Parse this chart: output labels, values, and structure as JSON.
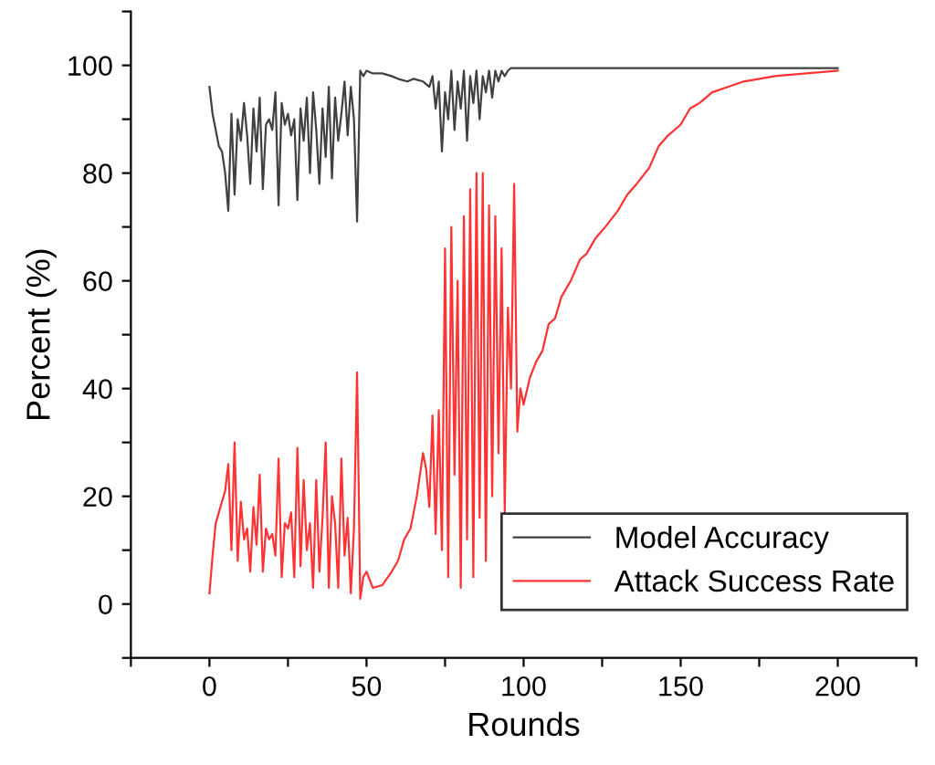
{
  "chart_data": {
    "type": "line",
    "xlabel": "Rounds",
    "ylabel": "Percent (%)",
    "xlim": [
      -25,
      225
    ],
    "xticks": [
      {
        "value": -25,
        "label": null
      },
      0,
      {
        "value": 25,
        "label": null
      },
      50,
      {
        "value": 75,
        "label": null
      },
      100,
      {
        "value": 125,
        "label": null
      },
      150,
      {
        "value": 175,
        "label": null
      },
      200,
      {
        "value": 225,
        "label": null
      }
    ],
    "ylim": [
      -10,
      110
    ],
    "yticks": [
      {
        "value": -10,
        "label": null
      },
      0,
      {
        "value": 10,
        "label": null
      },
      20,
      {
        "value": 30,
        "label": null
      },
      40,
      {
        "value": 50,
        "label": null
      },
      60,
      {
        "value": 70,
        "label": null
      },
      80,
      {
        "value": 90,
        "label": null
      },
      100,
      {
        "value": 110,
        "label": null
      }
    ],
    "grid": false,
    "legend": "bottom right",
    "line_style": "solid",
    "series": [
      {
        "name": "Model Accuracy",
        "color": "#404040",
        "x": [
          0,
          1,
          2,
          3,
          4,
          5,
          6,
          7,
          8,
          9,
          10,
          11,
          12,
          13,
          14,
          15,
          16,
          17,
          18,
          19,
          20,
          21,
          22,
          23,
          24,
          25,
          26,
          27,
          28,
          29,
          30,
          31,
          32,
          33,
          34,
          35,
          36,
          37,
          38,
          39,
          40,
          41,
          42,
          43,
          44,
          45,
          46,
          47,
          48,
          49,
          50,
          52,
          55,
          58,
          60,
          63,
          65,
          68,
          70,
          71,
          72,
          73,
          74,
          75,
          76,
          77,
          78,
          79,
          80,
          81,
          82,
          83,
          84,
          85,
          86,
          87,
          88,
          89,
          90,
          91,
          92,
          93,
          94,
          95,
          96,
          100,
          150,
          200
        ],
        "values": [
          96,
          91,
          88,
          85,
          84,
          80,
          73,
          91,
          76,
          90,
          86,
          93,
          87,
          78,
          92,
          84,
          94,
          77,
          89,
          90,
          88,
          95,
          74,
          93,
          89,
          91,
          87,
          90,
          75,
          92,
          86,
          94,
          80,
          95,
          88,
          78,
          92,
          83,
          96,
          79,
          94,
          86,
          91,
          97,
          87,
          96,
          90,
          71,
          99,
          98,
          99,
          98.5,
          98.5,
          98,
          97.5,
          97,
          97.5,
          97,
          96,
          98,
          92,
          97,
          84,
          95,
          90,
          99,
          88,
          97,
          92,
          99,
          86,
          98,
          93,
          99,
          90,
          98,
          95,
          99,
          94,
          99,
          97,
          99,
          98,
          99,
          99.5,
          99.5,
          99.5,
          99.5
        ]
      },
      {
        "name": "Attack Success Rate",
        "color": "#ff3333",
        "x": [
          0,
          1,
          2,
          3,
          4,
          5,
          6,
          7,
          8,
          9,
          10,
          11,
          12,
          13,
          14,
          15,
          16,
          17,
          18,
          19,
          20,
          21,
          22,
          23,
          24,
          25,
          26,
          27,
          28,
          29,
          30,
          31,
          32,
          33,
          34,
          35,
          36,
          37,
          38,
          39,
          40,
          41,
          42,
          43,
          44,
          45,
          46,
          47,
          48,
          49,
          50,
          52,
          55,
          58,
          60,
          62,
          64,
          66,
          67,
          68,
          69,
          70,
          71,
          72,
          73,
          74,
          75,
          76,
          77,
          78,
          79,
          80,
          81,
          82,
          83,
          84,
          85,
          86,
          87,
          88,
          89,
          90,
          91,
          92,
          93,
          94,
          95,
          96,
          97,
          98,
          99,
          100,
          102,
          104,
          106,
          108,
          110,
          112,
          115,
          118,
          120,
          123,
          126,
          130,
          133,
          136,
          140,
          143,
          146,
          150,
          153,
          156,
          160,
          165,
          170,
          175,
          180,
          190,
          200
        ],
        "values": [
          2,
          9,
          15,
          17,
          19,
          21,
          26,
          10,
          30,
          8,
          19,
          12,
          14,
          6,
          18,
          11,
          24,
          6,
          14,
          12,
          13,
          9,
          27,
          5,
          15,
          14,
          17,
          5,
          29,
          7,
          23,
          10,
          15,
          3,
          23,
          6,
          16,
          30,
          3,
          20,
          15,
          3,
          27,
          9,
          16,
          2,
          14,
          43,
          1,
          5,
          6,
          3,
          3.5,
          6,
          8,
          12,
          14,
          20,
          24,
          28,
          25,
          18,
          35,
          13,
          36,
          10,
          66,
          5,
          70,
          24,
          60,
          3,
          72,
          12,
          77,
          5,
          80,
          16,
          80,
          8,
          74,
          20,
          72,
          28,
          66,
          17,
          55,
          40,
          78,
          32,
          40,
          37,
          42,
          45,
          47,
          52,
          53,
          57,
          60,
          64,
          65,
          68,
          70,
          73,
          76,
          78,
          81,
          85,
          87,
          89,
          92,
          93,
          95,
          96,
          97,
          97.5,
          98,
          98.5,
          99
        ]
      }
    ]
  }
}
